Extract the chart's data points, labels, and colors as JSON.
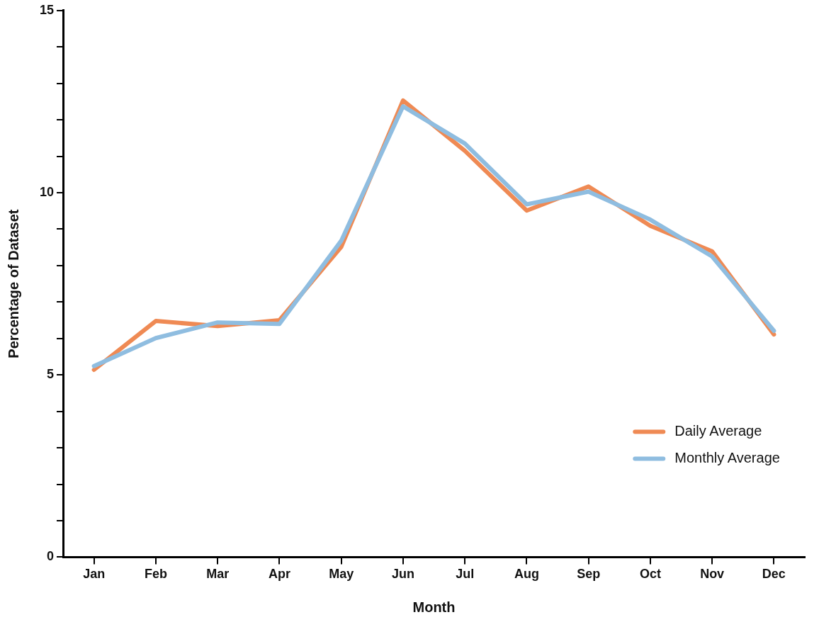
{
  "chart_data": {
    "type": "line",
    "xlabel": "Month",
    "ylabel": "Percentage of Dataset",
    "categories": [
      "Jan",
      "Feb",
      "Mar",
      "Apr",
      "May",
      "Jun",
      "Jul",
      "Aug",
      "Sep",
      "Oct",
      "Nov",
      "Dec"
    ],
    "series": [
      {
        "name": "Daily Average",
        "color": "#ef8a54",
        "values": [
          5.14,
          6.48,
          6.34,
          6.5,
          8.51,
          12.53,
          11.15,
          9.51,
          10.17,
          9.09,
          8.39,
          6.11
        ]
      },
      {
        "name": "Monthly Average",
        "color": "#8fbde0",
        "values": [
          5.24,
          6.01,
          6.44,
          6.4,
          8.68,
          12.37,
          11.35,
          9.68,
          10.03,
          9.26,
          8.25,
          6.21
        ]
      }
    ],
    "ylim": [
      0,
      15
    ],
    "yticks": [
      0,
      {
        "value": 1,
        "label": null
      },
      {
        "value": 2,
        "label": null
      },
      {
        "value": 3,
        "label": null
      },
      {
        "value": 4,
        "label": null
      },
      5,
      {
        "value": 6,
        "label": null
      },
      {
        "value": 7,
        "label": null
      },
      {
        "value": 8,
        "label": null
      },
      {
        "value": 9,
        "label": null
      },
      10,
      {
        "value": 11,
        "label": null
      },
      {
        "value": 12,
        "label": null
      },
      {
        "value": 13,
        "label": null
      },
      {
        "value": 14,
        "label": null
      },
      15
    ],
    "grid": false,
    "legend": "bottom right",
    "marker": "none",
    "line_style": "solid"
  }
}
